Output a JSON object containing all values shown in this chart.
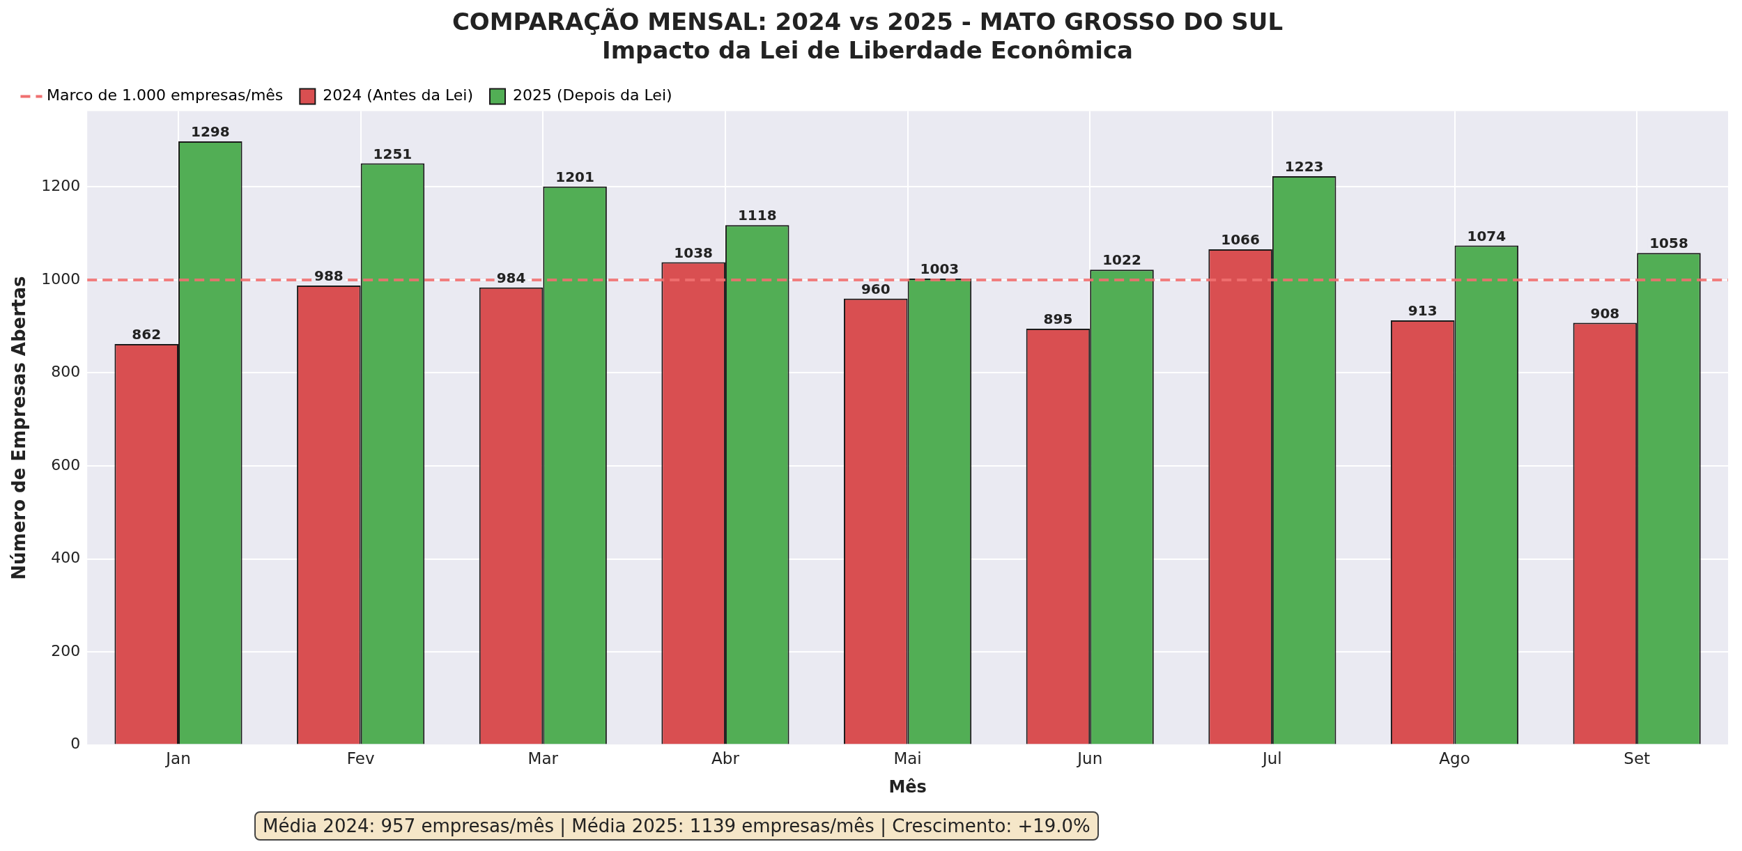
{
  "chart_data": {
    "type": "bar",
    "title": "COMPARAÇÃO MENSAL: 2024 vs 2025 - MATO GROSSO DO SUL",
    "subtitle": "Impacto da Lei de Liberdade Econômica",
    "xlabel": "Mês",
    "ylabel": "Número de Empresas Abertas",
    "categories": [
      "Jan",
      "Fev",
      "Mar",
      "Abr",
      "Mai",
      "Jun",
      "Jul",
      "Ago",
      "Set"
    ],
    "series": [
      {
        "name": "2024 (Antes da Lei)",
        "color": "#d94f51",
        "values": [
          862,
          988,
          984,
          1038,
          960,
          895,
          1066,
          913,
          908
        ]
      },
      {
        "name": "2025 (Depois da Lei)",
        "color": "#52ae55",
        "values": [
          1298,
          1251,
          1201,
          1118,
          1003,
          1022,
          1223,
          1074,
          1058
        ]
      }
    ],
    "ylim": [
      0,
      1363
    ],
    "yticks": [
      0,
      200,
      400,
      600,
      800,
      1000,
      1200
    ],
    "ref_lines": [
      {
        "axis": "y",
        "value": 1000,
        "label": "Marco de 1.000 empresas/mês",
        "color": "#f07070",
        "line_style": "dashed"
      }
    ],
    "annotations": [
      "Média 2024: 957 empresas/mês | Média 2025: 1139 empresas/mês | Crescimento: +19.0%"
    ],
    "data_labels": true,
    "grid": true,
    "legend": "top left"
  }
}
